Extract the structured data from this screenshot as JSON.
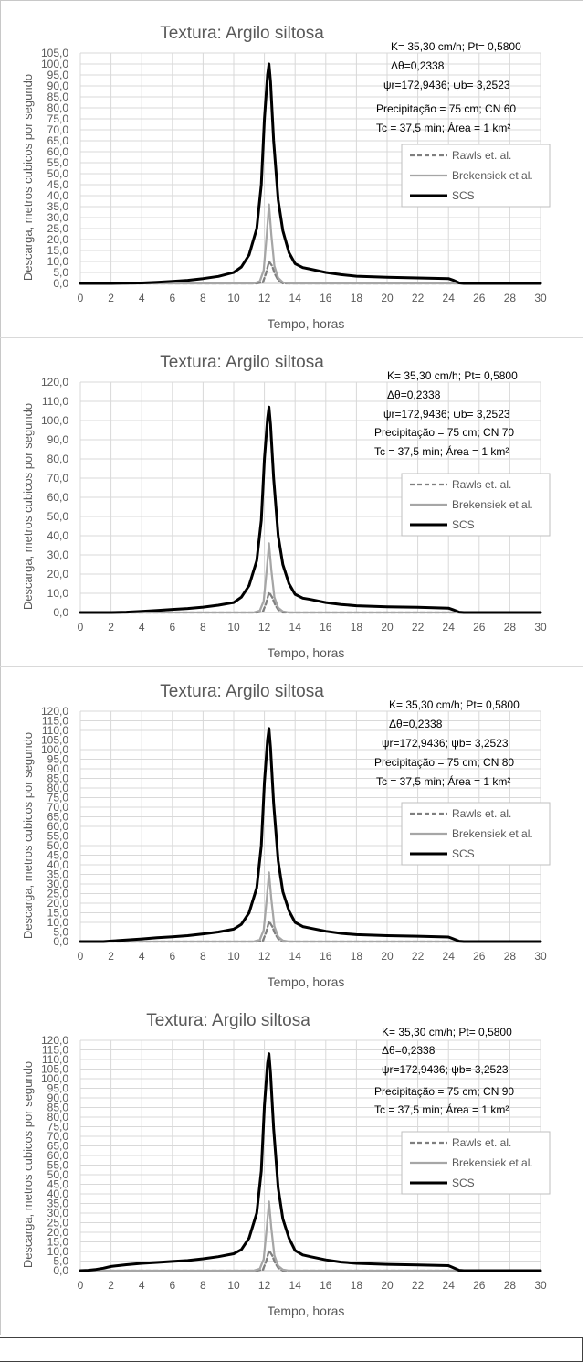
{
  "chart_data": [
    {
      "type": "line",
      "title": "Textura: Argilo siltosa",
      "xlabel": "Tempo, horas",
      "ylabel": "Descarga, metros cubicos por segundo",
      "xlim": [
        0,
        30
      ],
      "ylim": [
        0,
        105
      ],
      "xticks": [
        0,
        2,
        4,
        6,
        8,
        10,
        12,
        14,
        16,
        18,
        20,
        22,
        24,
        26,
        28,
        30
      ],
      "xtick_labels": [
        "0",
        "2",
        "4",
        "6",
        "8",
        "10",
        "12",
        "14",
        "16",
        "18",
        "20",
        "22",
        "24",
        "26",
        "28",
        "30"
      ],
      "yticks": [
        0,
        5,
        10,
        15,
        20,
        25,
        30,
        35,
        40,
        45,
        50,
        55,
        60,
        65,
        70,
        75,
        80,
        85,
        90,
        95,
        100,
        105
      ],
      "ytick_labels": [
        "0,0",
        "5,0",
        "10,0",
        "15,0",
        "20,0",
        "25,0",
        "30,0",
        "35,0",
        "40,0",
        "45,0",
        "50,0",
        "55,0",
        "60,0",
        "65,0",
        "70,0",
        "75,0",
        "80,0",
        "85,0",
        "90,0",
        "95,0",
        "100,0",
        "105,0"
      ],
      "grid": true,
      "legend_position": "right",
      "annotations": [
        "K= 35,30 cm/h; Pt= 0,5800",
        "Δθ=0,2338",
        "ψr=172,9436;  ψb= 3,2523",
        "Precipitação = 75 cm; CN 60",
        "Tc = 37,5 min; Área = 1 km²"
      ],
      "series": [
        {
          "name": "Rawls et. al.",
          "color": "#7f7f7f",
          "dash": "dashed",
          "x": [
            0,
            11.5,
            11.9,
            12.1,
            12.3,
            12.5,
            12.7,
            12.9,
            13.2,
            30
          ],
          "y": [
            0,
            0,
            0.5,
            4.5,
            10,
            8,
            4,
            1.5,
            0,
            0
          ]
        },
        {
          "name": "Brekensiek et al.",
          "color": "#a6a6a6",
          "dash": "solid",
          "x": [
            0,
            11.3,
            11.7,
            11.95,
            12.15,
            12.3,
            12.45,
            12.65,
            12.9,
            13.2,
            13.6,
            30
          ],
          "y": [
            0,
            0,
            1,
            6,
            22,
            36,
            22,
            8,
            2.5,
            0.5,
            0,
            0
          ]
        },
        {
          "name": "SCS",
          "color": "#000000",
          "dash": "solid",
          "x": [
            0,
            2,
            4,
            5,
            6,
            7,
            8,
            9,
            10,
            10.5,
            11,
            11.5,
            11.8,
            12,
            12.2,
            12.3,
            12.4,
            12.6,
            12.9,
            13.2,
            13.6,
            14,
            14.5,
            15,
            16,
            17,
            18,
            20,
            22,
            24,
            24.3,
            24.7,
            25,
            26,
            28,
            30
          ],
          "y": [
            0,
            0,
            0.2,
            0.5,
            0.9,
            1.4,
            2.2,
            3.2,
            5,
            7.5,
            13,
            25,
            45,
            75,
            95,
            100,
            92,
            65,
            38,
            24,
            14,
            9,
            7.2,
            6.5,
            5,
            4,
            3.3,
            2.8,
            2.5,
            2.2,
            1.5,
            0.2,
            0,
            0,
            0,
            0
          ]
        }
      ]
    },
    {
      "type": "line",
      "title": "Textura: Argilo siltosa",
      "xlabel": "Tempo, horas",
      "ylabel": "Descarga, metros cubicos por segundo",
      "xlim": [
        0,
        30
      ],
      "ylim": [
        0,
        120
      ],
      "xticks": [
        0,
        2,
        4,
        6,
        8,
        10,
        12,
        14,
        16,
        18,
        20,
        22,
        24,
        26,
        28,
        30
      ],
      "xtick_labels": [
        "0",
        "2",
        "4",
        "6",
        "8",
        "10",
        "12",
        "14",
        "16",
        "18",
        "20",
        "22",
        "24",
        "26",
        "28",
        "30"
      ],
      "yticks": [
        0,
        10,
        20,
        30,
        40,
        50,
        60,
        70,
        80,
        90,
        100,
        110,
        120
      ],
      "ytick_labels": [
        "0,0",
        "10,0",
        "20,0",
        "30,0",
        "40,0",
        "50,0",
        "60,0",
        "70,0",
        "80,0",
        "90,0",
        "100,0",
        "110,0",
        "120,0"
      ],
      "grid": true,
      "legend_position": "right",
      "annotations": [
        "K= 35,30 cm/h; Pt= 0,5800",
        "Δθ=0,2338",
        "ψr=172,9436;  ψb= 3,2523",
        "Precipitação = 75 cm; CN 70",
        "Tc = 37,5 min; Área = 1 km²"
      ],
      "series": [
        {
          "name": "Rawls et. al.",
          "color": "#7f7f7f",
          "dash": "dashed",
          "x": [
            0,
            11.5,
            11.9,
            12.1,
            12.3,
            12.5,
            12.7,
            12.9,
            13.2,
            30
          ],
          "y": [
            0,
            0,
            0.5,
            4.5,
            10.5,
            8,
            4,
            1.5,
            0,
            0
          ]
        },
        {
          "name": "Brekensiek et al.",
          "color": "#a6a6a6",
          "dash": "solid",
          "x": [
            0,
            11.3,
            11.7,
            11.95,
            12.15,
            12.3,
            12.45,
            12.65,
            12.9,
            13.2,
            13.6,
            30
          ],
          "y": [
            0,
            0,
            1,
            6,
            22,
            36,
            22,
            8,
            2.5,
            0.5,
            0,
            0
          ]
        },
        {
          "name": "SCS",
          "color": "#000000",
          "dash": "solid",
          "x": [
            0,
            2,
            3,
            4,
            5,
            6,
            7,
            8,
            9,
            10,
            10.5,
            11,
            11.5,
            11.8,
            12,
            12.2,
            12.3,
            12.4,
            12.6,
            12.9,
            13.2,
            13.6,
            14,
            14.5,
            15,
            16,
            17,
            18,
            20,
            22,
            24,
            24.3,
            24.7,
            25,
            26,
            28,
            30
          ],
          "y": [
            0,
            0,
            0.2,
            0.6,
            1.1,
            1.6,
            2.1,
            2.8,
            3.8,
            5.2,
            8,
            14,
            27,
            48,
            80,
            101,
            107,
            98,
            70,
            40,
            25,
            15,
            9.5,
            7.5,
            6.8,
            5.2,
            4.2,
            3.5,
            3,
            2.7,
            2.3,
            1.5,
            0.2,
            0,
            0,
            0,
            0
          ]
        }
      ]
    },
    {
      "type": "line",
      "title": "Textura: Argilo siltosa",
      "xlabel": "Tempo, horas",
      "ylabel": "Descarga, metros cubicos por segundo",
      "xlim": [
        0,
        30
      ],
      "ylim": [
        0,
        120
      ],
      "xticks": [
        0,
        2,
        4,
        6,
        8,
        10,
        12,
        14,
        16,
        18,
        20,
        22,
        24,
        26,
        28,
        30
      ],
      "xtick_labels": [
        "0",
        "2",
        "4",
        "6",
        "8",
        "10",
        "12",
        "14",
        "16",
        "18",
        "20",
        "22",
        "24",
        "26",
        "28",
        "30"
      ],
      "yticks": [
        0,
        5,
        10,
        15,
        20,
        25,
        30,
        35,
        40,
        45,
        50,
        55,
        60,
        65,
        70,
        75,
        80,
        85,
        90,
        95,
        100,
        105,
        110,
        115,
        120
      ],
      "ytick_labels": [
        "0,0",
        "5,0",
        "10,0",
        "15,0",
        "20,0",
        "25,0",
        "30,0",
        "35,0",
        "40,0",
        "45,0",
        "50,0",
        "55,0",
        "60,0",
        "65,0",
        "70,0",
        "75,0",
        "80,0",
        "85,0",
        "90,0",
        "95,0",
        "100,0",
        "105,0",
        "110,0",
        "115,0",
        "120,0"
      ],
      "grid": true,
      "legend_position": "right",
      "annotations": [
        "K= 35,30 cm/h; Pt= 0,5800",
        "Δθ=0,2338",
        "ψr=172,9436;  ψb= 3,2523",
        "Precipitação = 75 cm; CN 80",
        "Tc = 37,5 min; Área = 1 km²"
      ],
      "series": [
        {
          "name": "Rawls et. al.",
          "color": "#7f7f7f",
          "dash": "dashed",
          "x": [
            0,
            11.5,
            11.9,
            12.1,
            12.3,
            12.5,
            12.7,
            12.9,
            13.2,
            30
          ],
          "y": [
            0,
            0,
            0.5,
            4.5,
            10.5,
            8,
            4,
            1.5,
            0,
            0
          ]
        },
        {
          "name": "Brekensiek et al.",
          "color": "#a6a6a6",
          "dash": "solid",
          "x": [
            0,
            11.3,
            11.7,
            11.95,
            12.15,
            12.3,
            12.45,
            12.65,
            12.9,
            13.2,
            13.6,
            30
          ],
          "y": [
            0,
            0,
            1,
            6,
            22,
            36,
            22,
            8,
            2.5,
            0.5,
            0,
            0
          ]
        },
        {
          "name": "SCS",
          "color": "#000000",
          "dash": "solid",
          "x": [
            0,
            1.5,
            2,
            3,
            4,
            5,
            6,
            7,
            8,
            9,
            10,
            10.5,
            11,
            11.5,
            11.8,
            12,
            12.2,
            12.3,
            12.4,
            12.6,
            12.9,
            13.2,
            13.6,
            14,
            14.5,
            15,
            16,
            17,
            18,
            20,
            22,
            24,
            24.3,
            24.7,
            25,
            26,
            28,
            30
          ],
          "y": [
            0,
            0,
            0.3,
            0.8,
            1.4,
            2,
            2.5,
            3.1,
            4,
            5,
            6.5,
            9,
            15,
            28,
            50,
            83,
            105,
            111,
            101,
            72,
            42,
            26,
            16,
            10,
            7.8,
            7,
            5.4,
            4.3,
            3.6,
            3.1,
            2.8,
            2.4,
            1.5,
            0.2,
            0,
            0,
            0,
            0
          ]
        }
      ]
    },
    {
      "type": "line",
      "title": "Textura: Argilo siltosa",
      "xlabel": "Tempo, horas",
      "ylabel": "Descarga, metros cubicos por segundo",
      "xlim": [
        0,
        30
      ],
      "ylim": [
        0,
        120
      ],
      "xticks": [
        0,
        2,
        4,
        6,
        8,
        10,
        12,
        14,
        16,
        18,
        20,
        22,
        24,
        26,
        28,
        30
      ],
      "xtick_labels": [
        "0",
        "2",
        "4",
        "6",
        "8",
        "10",
        "12",
        "14",
        "16",
        "18",
        "20",
        "22",
        "24",
        "26",
        "28",
        "30"
      ],
      "yticks": [
        0,
        5,
        10,
        15,
        20,
        25,
        30,
        35,
        40,
        45,
        50,
        55,
        60,
        65,
        70,
        75,
        80,
        85,
        90,
        95,
        100,
        105,
        110,
        115,
        120
      ],
      "ytick_labels": [
        "0,0",
        "5,0",
        "10,0",
        "15,0",
        "20,0",
        "25,0",
        "30,0",
        "35,0",
        "40,0",
        "45,0",
        "50,0",
        "55,0",
        "60,0",
        "65,0",
        "70,0",
        "75,0",
        "80,0",
        "85,0",
        "90,0",
        "95,0",
        "100,0",
        "105,0",
        "110,0",
        "115,0",
        "120,0"
      ],
      "grid": true,
      "legend_position": "right",
      "annotations": [
        "K= 35,30 cm/h; Pt= 0,5800",
        "Δθ=0,2338",
        "ψr=172,9436;  ψb= 3,2523",
        "Precipitação = 75 cm; CN 90",
        "Tc = 37,5 min; Área = 1 km²"
      ],
      "series": [
        {
          "name": "Rawls et. al.",
          "color": "#7f7f7f",
          "dash": "dashed",
          "x": [
            0,
            11.5,
            11.9,
            12.1,
            12.3,
            12.5,
            12.7,
            12.9,
            13.2,
            30
          ],
          "y": [
            0,
            0,
            0.5,
            4.5,
            10.5,
            8,
            4,
            1.5,
            0,
            0
          ]
        },
        {
          "name": "Brekensiek et al.",
          "color": "#a6a6a6",
          "dash": "solid",
          "x": [
            0,
            11.3,
            11.7,
            11.95,
            12.15,
            12.3,
            12.45,
            12.65,
            12.9,
            13.2,
            13.6,
            30
          ],
          "y": [
            0,
            0,
            1,
            6,
            22,
            36,
            22,
            8,
            2.5,
            0.5,
            0,
            0
          ]
        },
        {
          "name": "SCS",
          "color": "#000000",
          "dash": "solid",
          "x": [
            0,
            0.5,
            1,
            1.5,
            2,
            3,
            4,
            5,
            6,
            7,
            8,
            9,
            10,
            10.5,
            11,
            11.5,
            11.8,
            12,
            12.2,
            12.3,
            12.4,
            12.6,
            12.9,
            13.2,
            13.6,
            14,
            14.5,
            15,
            16,
            17,
            18,
            20,
            22,
            24,
            24.3,
            24.7,
            25,
            26,
            28,
            30
          ],
          "y": [
            0,
            0.2,
            0.6,
            1.3,
            2.2,
            3.1,
            3.8,
            4.3,
            4.8,
            5.3,
            6.2,
            7.3,
            8.8,
            11,
            17,
            30,
            52,
            86,
            108,
            113,
            103,
            74,
            43,
            27,
            17,
            10.5,
            8.2,
            7.3,
            5.6,
            4.5,
            3.8,
            3.3,
            3,
            2.6,
            1.6,
            0.2,
            0,
            0,
            0,
            0
          ]
        }
      ]
    }
  ]
}
